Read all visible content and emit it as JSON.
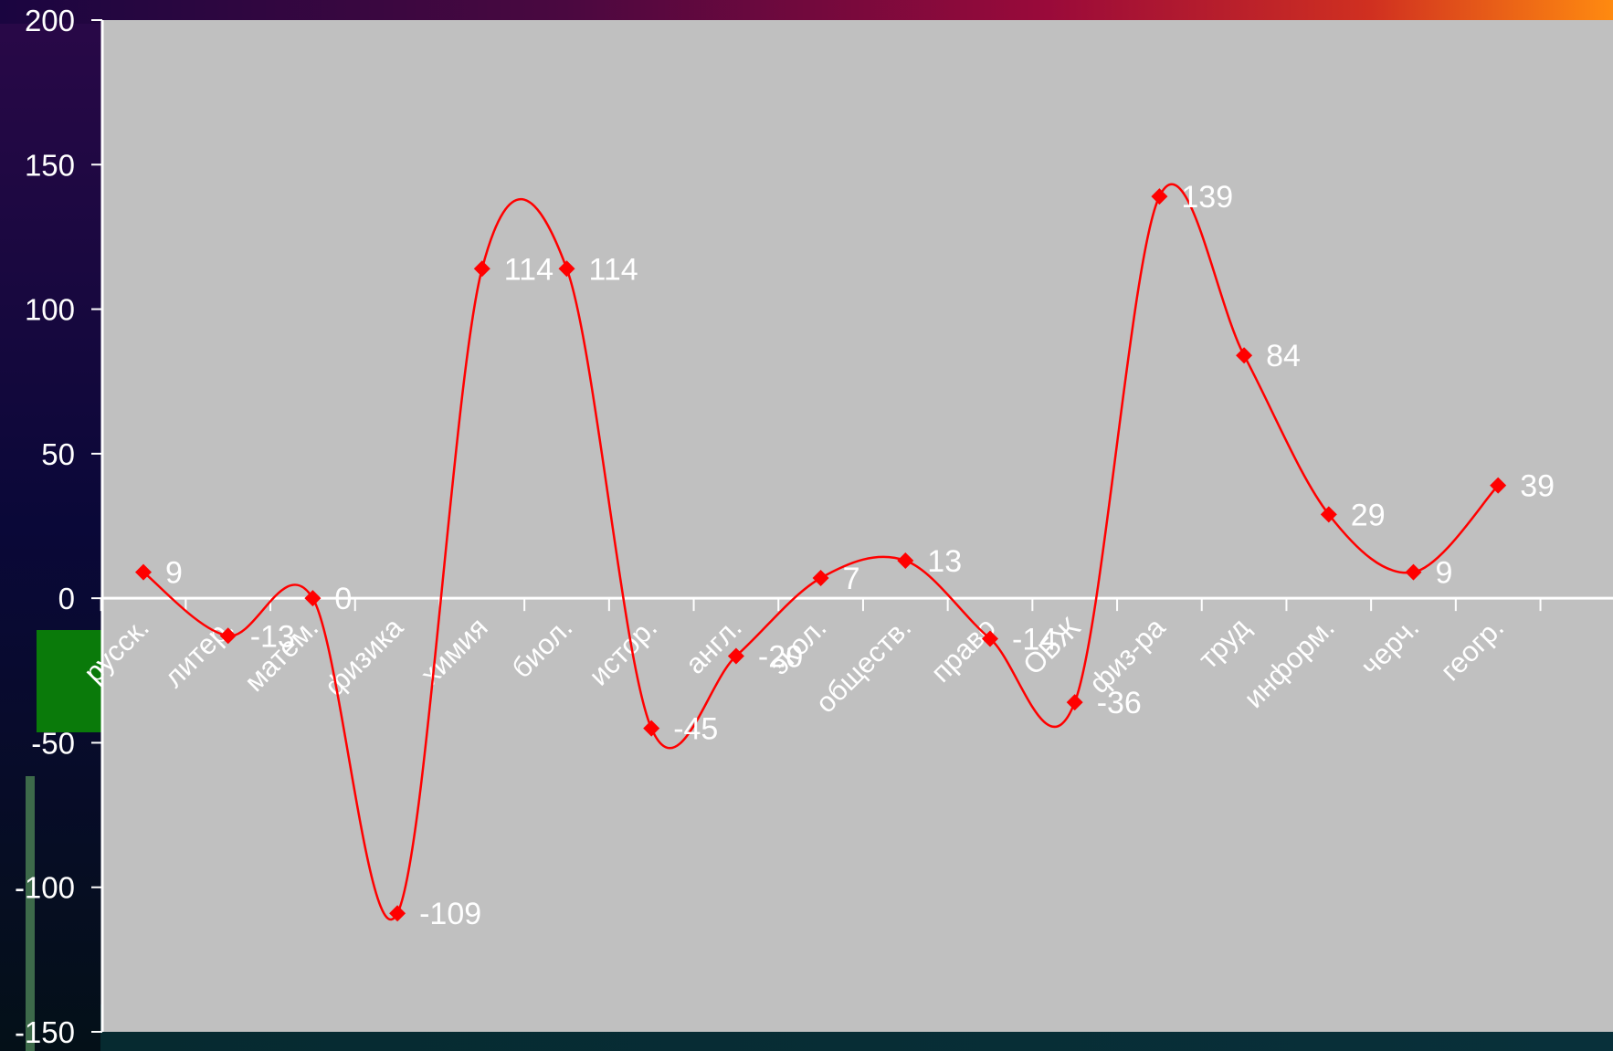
{
  "chart_data": {
    "type": "line",
    "smooth": true,
    "categories": [
      "русск.",
      "литер.",
      "матем.",
      "физика",
      "химия",
      "биол.",
      "истор.",
      "англ.",
      "экол.",
      "обществ.",
      "право",
      "ОБЖ",
      "физ-ра",
      "труд",
      "информ.",
      "черч.",
      "геогр."
    ],
    "series": [
      {
        "values": [
          9,
          -13,
          0,
          -109,
          114,
          114,
          -45,
          -20,
          7,
          13,
          -14,
          -36,
          139,
          84,
          29,
          9,
          39
        ],
        "labels": [
          "9",
          "-13",
          "0",
          "-109",
          "114",
          "114",
          "-45",
          "-20",
          "7",
          "13",
          "-14",
          "-36",
          "139",
          "84",
          "29",
          "9",
          "39"
        ],
        "color": "#ff0000",
        "marker": "diamond"
      }
    ],
    "ylim": [
      -150,
      200
    ],
    "yticks": [
      "200",
      "150",
      "100",
      "50",
      "0",
      "-50",
      "-100",
      "-150"
    ],
    "ytick_values": [
      200,
      150,
      100,
      50,
      0,
      -50,
      -100,
      -150
    ],
    "grid": false,
    "zero_line": true,
    "plot_background": "#c0c0c0",
    "axis_color": "#ffffff",
    "text_color": "#ffffff",
    "title": "",
    "xlabel": "",
    "ylabel": ""
  },
  "colors": {
    "frame_top": "#4a0840",
    "frame_top_accent": "#c0113a",
    "frame_top_end": "#ff8a10",
    "frame_side": "#0a0630",
    "frame_bottom": "#06303a",
    "green_block": "#0a7a0a"
  }
}
